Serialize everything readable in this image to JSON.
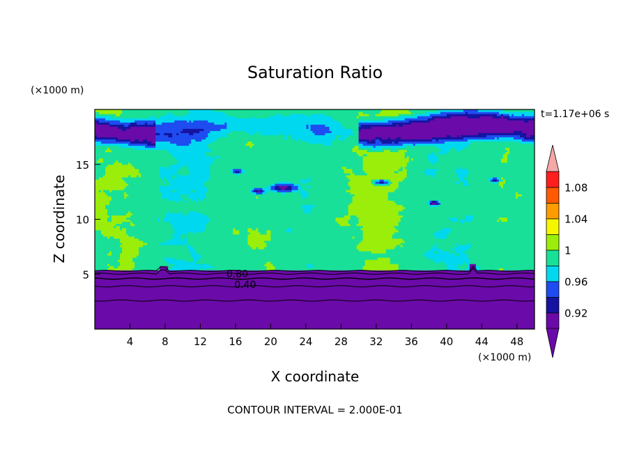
{
  "chart_data": {
    "type": "heatmap",
    "title": "Saturation Ratio",
    "xlabel": "X coordinate",
    "ylabel": "Z coordinate",
    "x_unit": "(×1000 m)",
    "y_unit": "(×1000 m)",
    "time_label": "t=1.17e+06 s",
    "footer": "CONTOUR INTERVAL = 2.000E-01",
    "xlim": [
      0,
      50
    ],
    "ylim": [
      0,
      20
    ],
    "x_ticks": [
      {
        "value": 4,
        "label": "4"
      },
      {
        "value": 8,
        "label": "8"
      },
      {
        "value": 12,
        "label": "12"
      },
      {
        "value": 16,
        "label": "16"
      },
      {
        "value": 20,
        "label": "20"
      },
      {
        "value": 24,
        "label": "24"
      },
      {
        "value": 28,
        "label": "28"
      },
      {
        "value": 32,
        "label": "32"
      },
      {
        "value": 36,
        "label": "36"
      },
      {
        "value": 40,
        "label": "40"
      },
      {
        "value": 44,
        "label": "44"
      },
      {
        "value": 48,
        "label": "48"
      }
    ],
    "y_ticks": [
      {
        "value": 5,
        "label": "5"
      },
      {
        "value": 10,
        "label": "10"
      },
      {
        "value": 15,
        "label": "15"
      }
    ],
    "colorbar": {
      "levels": [
        0.9,
        0.92,
        0.94,
        0.96,
        0.98,
        1.0,
        1.02,
        1.04,
        1.06,
        1.08,
        1.1
      ],
      "colors": [
        "#6a0aa8",
        "#1414a0",
        "#1e4cf0",
        "#00d8f0",
        "#18e098",
        "#9aee0a",
        "#f6f600",
        "#ff9c00",
        "#ff5a00",
        "#ff1e1e"
      ],
      "under_color": "#6a0aa8",
      "over_color": "#f4a8a8",
      "labels": [
        {
          "value": 0.92,
          "label": "0.92"
        },
        {
          "value": 0.96,
          "label": "0.96"
        },
        {
          "value": 1.0,
          "label": "1"
        },
        {
          "value": 1.04,
          "label": "1.04"
        },
        {
          "value": 1.08,
          "label": "1.08"
        }
      ]
    },
    "contour_labels": [
      {
        "x": 16.2,
        "z": 5.05,
        "label": "0.80"
      },
      {
        "x": 17.1,
        "z": 4.05,
        "label": "0.40"
      }
    ],
    "regions": {
      "lower_dry_layer_top_z": 5.4,
      "contour_lines_z": [
        5.3,
        5.05,
        4.6,
        3.9,
        2.6
      ],
      "upper_dry_layer_z": [
        16.5,
        20
      ],
      "dominant_mid_values": [
        0.98,
        1.0
      ]
    }
  }
}
